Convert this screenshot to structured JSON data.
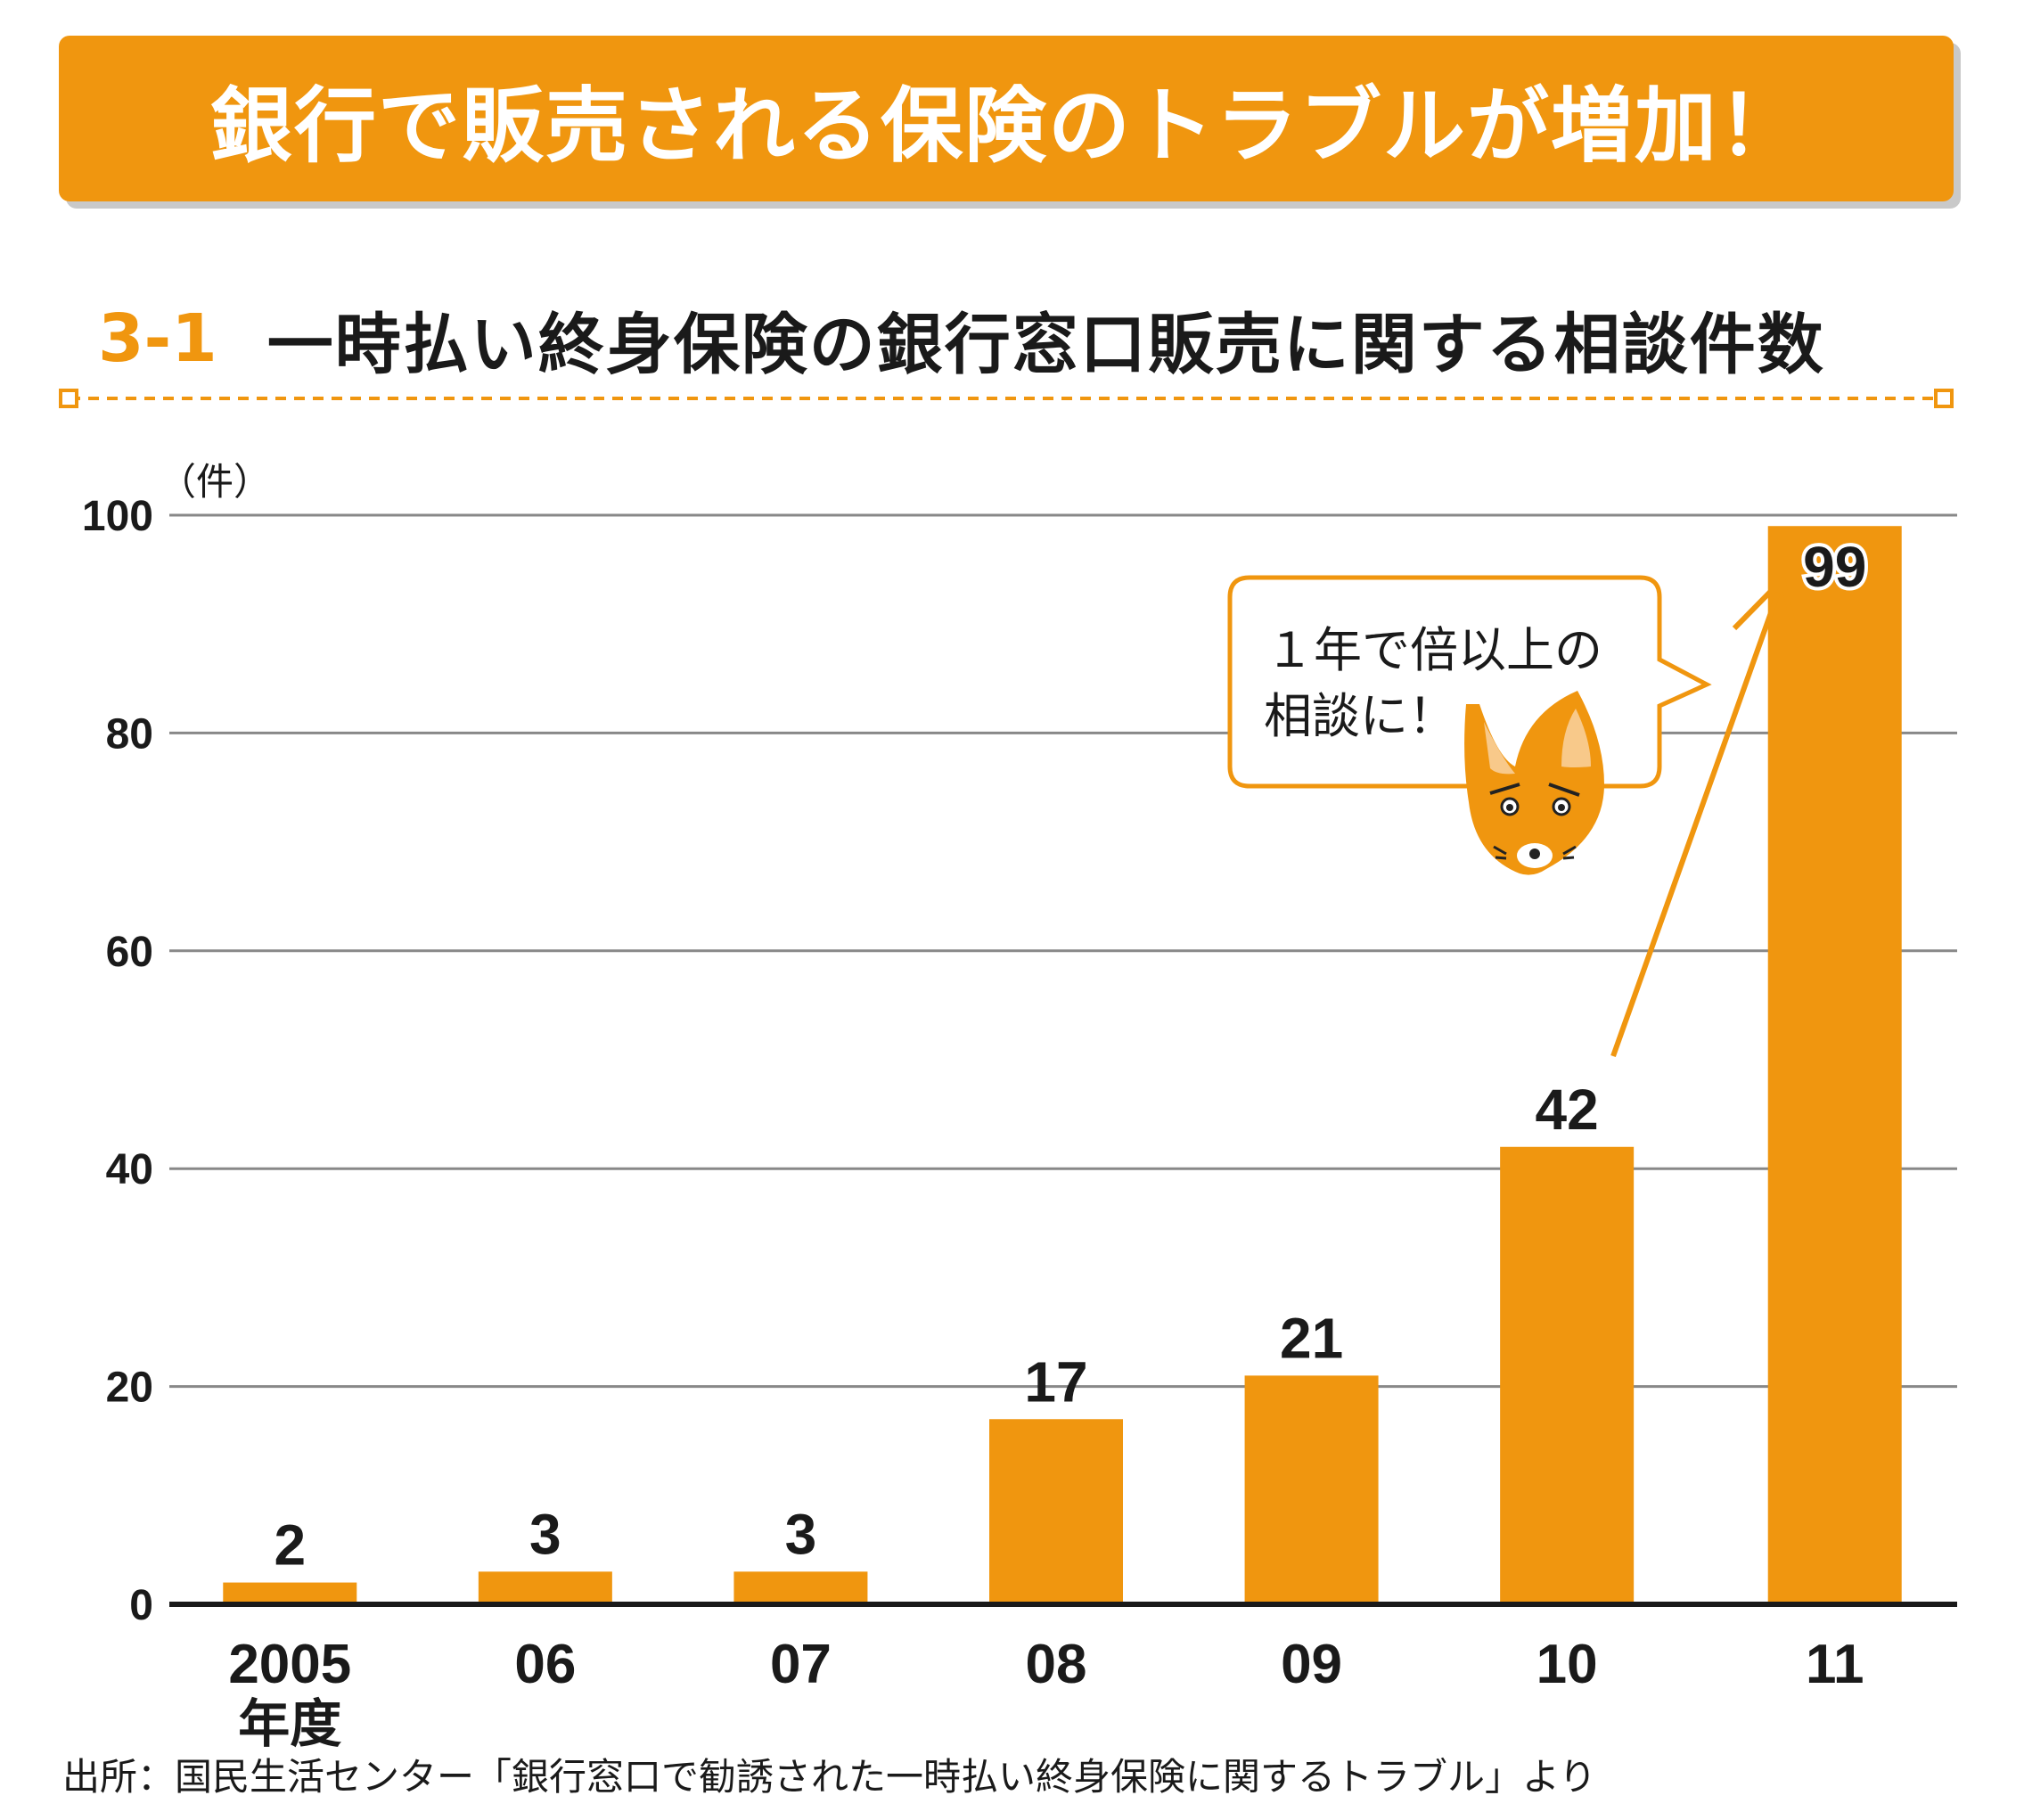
{
  "header": {
    "banner_title": "銀行で販売される保険のトラブルが増加！",
    "figure_number": "3-1",
    "figure_title": "一時払い終身保険の銀行窓口販売に関する相談件数"
  },
  "callout": {
    "line1": "１年で倍以上の",
    "line2": "相談に！"
  },
  "source": "出所：国民生活センター「銀行窓口で勧誘された一時払い終身保険に関するトラブル」より",
  "colors": {
    "accent": "#f0960f",
    "grid": "#888888",
    "text": "#1a1a1a",
    "fox_ear_inner": "#f8c98a"
  },
  "chart_data": {
    "type": "bar",
    "categories": [
      "2005",
      "06",
      "07",
      "08",
      "09",
      "10",
      "11"
    ],
    "first_category_suffix": "年度",
    "values": [
      2,
      3,
      3,
      17,
      21,
      42,
      99
    ],
    "ylabel": "（件）",
    "ylim": [
      0,
      100
    ],
    "yticks": [
      0,
      20,
      40,
      60,
      80,
      100
    ],
    "grid": true,
    "data_labels": true
  }
}
